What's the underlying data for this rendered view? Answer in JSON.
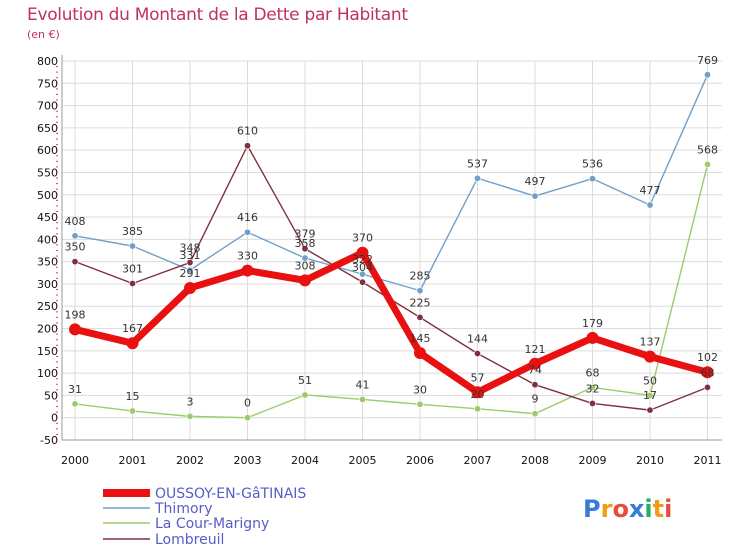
{
  "chart_data": {
    "type": "line",
    "title": "Evolution du Montant de la Dette par Habitant",
    "subtitle": "(en €)",
    "xlabel": "",
    "ylabel": "",
    "x": [
      "2000",
      "2001",
      "2002",
      "2003",
      "2004",
      "2005",
      "2006",
      "2007",
      "2008",
      "2009",
      "2010",
      "2011"
    ],
    "ylim": [
      -50,
      800
    ],
    "yticks": [
      -50,
      0,
      50,
      100,
      150,
      200,
      250,
      300,
      350,
      400,
      450,
      500,
      550,
      600,
      650,
      700,
      750,
      800
    ],
    "grid": true,
    "legend_position": "bottom-left",
    "series": [
      {
        "name": "OUSSOY-EN-GâTINAIS",
        "color": "#e81010",
        "values": [
          198,
          167,
          291,
          330,
          308,
          370,
          145,
          57,
          121,
          179,
          137,
          102
        ]
      },
      {
        "name": "Thimory",
        "color": "#6fa0cc",
        "values": [
          408,
          385,
          331,
          416,
          358,
          322,
          285,
          537,
          497,
          536,
          477,
          769
        ]
      },
      {
        "name": "La Cour-Marigny",
        "color": "#9ccc6a",
        "values": [
          31,
          15,
          3,
          0,
          51,
          41,
          30,
          20,
          9,
          68,
          50,
          568
        ]
      },
      {
        "name": "Lombreuil",
        "color": "#803040",
        "values": [
          350,
          301,
          348,
          610,
          379,
          304,
          225,
          144,
          74,
          32,
          17,
          68
        ]
      }
    ]
  },
  "logo_text": "Proxiti"
}
